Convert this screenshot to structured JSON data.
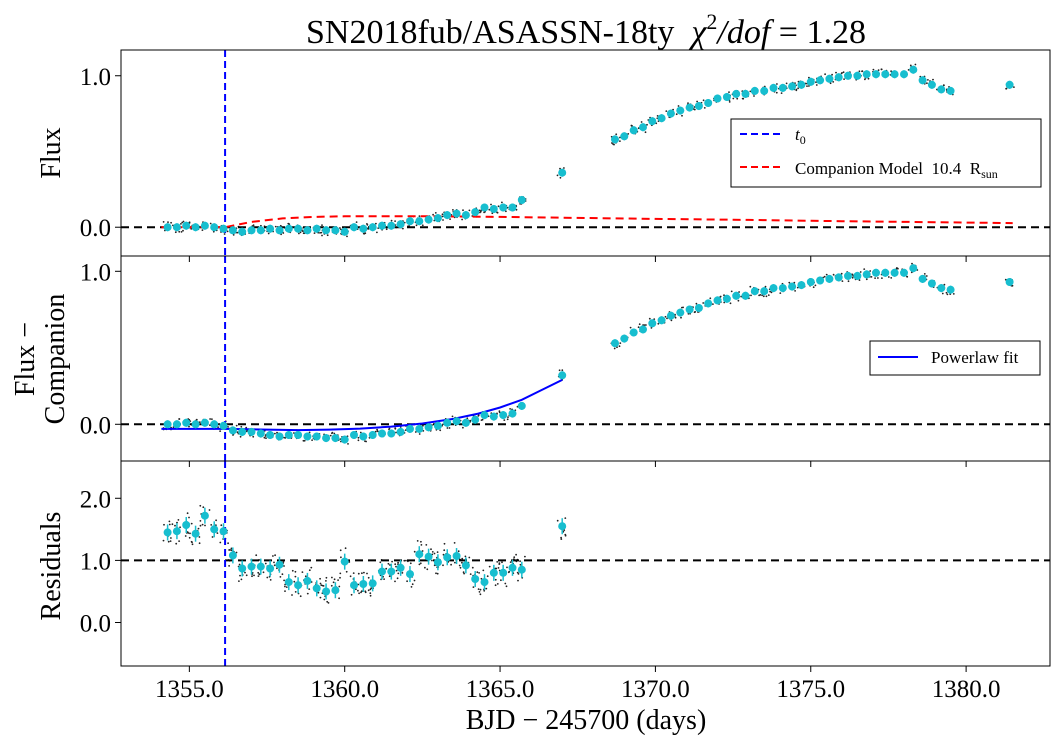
{
  "chart_data": {
    "type": "scatter",
    "title_main": "SN2018fub/ASASSN-18ty",
    "title_stat_symbol": "χ",
    "title_stat_power": "2",
    "title_stat_rest": "/dof",
    "title_stat_value": "= 1.28",
    "xlabel": "BJD − 245700 (days)",
    "xlim": [
      1352.8,
      1382.7
    ],
    "xticks": [
      1355.0,
      1360.0,
      1365.0,
      1370.0,
      1375.0,
      1380.0
    ],
    "xtick_labels": [
      "1355.0",
      "1360.0",
      "1365.0",
      "1370.0",
      "1375.0",
      "1380.0"
    ],
    "t0": 1356.15,
    "colors": {
      "binned": "#17becf",
      "raw": "#222222",
      "t0_line": "#0000ff",
      "companion": "#ff0000",
      "powerlaw": "#0000ff",
      "reference": "#000000"
    },
    "panels": [
      {
        "id": "flux",
        "ylabel": "Flux",
        "ylim": [
          -0.19,
          1.17
        ],
        "yticks": [
          0.0,
          1.0
        ],
        "ytick_labels": [
          "0.0",
          "1.0"
        ],
        "hline": 0.0,
        "legend": {
          "location": "center right",
          "t0_label": "t",
          "t0_sub": "0",
          "companion_label": "Companion Model  10.4  R",
          "companion_sub": "sun"
        },
        "companion_model": {
          "x": [
            1354.1,
            1355.5,
            1356.15,
            1357.0,
            1358.0,
            1359.0,
            1360.0,
            1361.5,
            1363.0,
            1365.0,
            1367.0,
            1370.0,
            1373.0,
            1376.0,
            1379.0,
            1381.5
          ],
          "y": [
            0.0,
            0.0,
            0.0,
            0.035,
            0.058,
            0.068,
            0.072,
            0.073,
            0.072,
            0.068,
            0.063,
            0.055,
            0.048,
            0.04,
            0.033,
            0.027
          ]
        },
        "binned": {
          "x": [
            1354.3,
            1354.6,
            1354.9,
            1355.2,
            1355.5,
            1355.8,
            1356.1,
            1356.4,
            1356.7,
            1357.0,
            1357.3,
            1357.6,
            1357.9,
            1358.2,
            1358.5,
            1358.8,
            1359.1,
            1359.4,
            1359.7,
            1360.0,
            1360.3,
            1360.6,
            1360.9,
            1361.2,
            1361.5,
            1361.8,
            1362.1,
            1362.4,
            1362.7,
            1363.0,
            1363.3,
            1363.6,
            1363.9,
            1364.2,
            1364.5,
            1364.8,
            1365.1,
            1365.4,
            1365.7,
            1367.0,
            1368.7,
            1369.0,
            1369.3,
            1369.6,
            1369.9,
            1370.2,
            1370.5,
            1370.8,
            1371.1,
            1371.4,
            1371.7,
            1372.0,
            1372.3,
            1372.6,
            1372.9,
            1373.2,
            1373.5,
            1373.8,
            1374.1,
            1374.4,
            1374.7,
            1375.0,
            1375.3,
            1375.6,
            1375.9,
            1376.2,
            1376.5,
            1376.8,
            1377.1,
            1377.4,
            1377.7,
            1378.0,
            1378.3,
            1378.6,
            1378.9,
            1379.2,
            1379.5,
            1381.4
          ],
          "y": [
            0.0,
            0.0,
            0.01,
            0.0,
            0.01,
            0.0,
            -0.01,
            -0.02,
            -0.03,
            -0.02,
            -0.02,
            -0.01,
            -0.02,
            -0.01,
            -0.01,
            -0.02,
            -0.01,
            -0.02,
            -0.02,
            -0.03,
            0.0,
            -0.01,
            0.0,
            0.01,
            0.01,
            0.02,
            0.04,
            0.04,
            0.05,
            0.06,
            0.08,
            0.09,
            0.08,
            0.1,
            0.13,
            0.12,
            0.13,
            0.13,
            0.18,
            0.36,
            0.58,
            0.6,
            0.64,
            0.66,
            0.7,
            0.72,
            0.75,
            0.77,
            0.79,
            0.8,
            0.82,
            0.85,
            0.86,
            0.88,
            0.88,
            0.9,
            0.9,
            0.92,
            0.92,
            0.93,
            0.94,
            0.96,
            0.97,
            0.98,
            0.99,
            1.0,
            1.0,
            1.01,
            1.01,
            1.01,
            1.01,
            1.01,
            1.04,
            0.97,
            0.94,
            0.91,
            0.9,
            0.94
          ]
        }
      },
      {
        "id": "flux-minus-companion",
        "ylabel_line1": "Flux −",
        "ylabel_line2": "Companion",
        "ylim": [
          -0.24,
          1.1
        ],
        "yticks": [
          0.0,
          1.0
        ],
        "ytick_labels": [
          "0.0",
          "1.0"
        ],
        "hline": 0.0,
        "legend": {
          "location": "center right",
          "powerlaw_label": "Powerlaw fit"
        },
        "powerlaw_fit": {
          "x": [
            1354.1,
            1355.0,
            1356.15,
            1357.5,
            1358.5,
            1359.5,
            1360.5,
            1361.5,
            1362.5,
            1363.5,
            1364.3,
            1365.0,
            1365.7,
            1366.3,
            1367.0
          ],
          "y": [
            -0.03,
            -0.03,
            -0.03,
            -0.035,
            -0.038,
            -0.035,
            -0.028,
            -0.015,
            0.005,
            0.035,
            0.07,
            0.11,
            0.16,
            0.22,
            0.29
          ]
        },
        "binned": {
          "x": [
            1354.3,
            1354.6,
            1354.9,
            1355.2,
            1355.5,
            1355.8,
            1356.1,
            1356.4,
            1356.7,
            1357.0,
            1357.3,
            1357.6,
            1357.9,
            1358.2,
            1358.5,
            1358.8,
            1359.1,
            1359.4,
            1359.7,
            1360.0,
            1360.3,
            1360.6,
            1360.9,
            1361.2,
            1361.5,
            1361.8,
            1362.1,
            1362.4,
            1362.7,
            1363.0,
            1363.3,
            1363.6,
            1363.9,
            1364.2,
            1364.5,
            1364.8,
            1365.1,
            1365.4,
            1365.7,
            1367.0,
            1368.7,
            1369.0,
            1369.3,
            1369.6,
            1369.9,
            1370.2,
            1370.5,
            1370.8,
            1371.1,
            1371.4,
            1371.7,
            1372.0,
            1372.3,
            1372.6,
            1372.9,
            1373.2,
            1373.5,
            1373.8,
            1374.1,
            1374.4,
            1374.7,
            1375.0,
            1375.3,
            1375.6,
            1375.9,
            1376.2,
            1376.5,
            1376.8,
            1377.1,
            1377.4,
            1377.7,
            1378.0,
            1378.3,
            1378.6,
            1378.9,
            1379.2,
            1379.5,
            1381.4
          ],
          "y": [
            0.0,
            0.0,
            0.01,
            0.0,
            0.01,
            0.0,
            -0.01,
            -0.04,
            -0.05,
            -0.05,
            -0.06,
            -0.07,
            -0.08,
            -0.07,
            -0.07,
            -0.08,
            -0.08,
            -0.09,
            -0.09,
            -0.1,
            -0.07,
            -0.08,
            -0.07,
            -0.06,
            -0.06,
            -0.05,
            -0.03,
            -0.03,
            -0.02,
            -0.01,
            0.01,
            0.02,
            0.01,
            0.03,
            0.06,
            0.05,
            0.06,
            0.07,
            0.12,
            0.32,
            0.53,
            0.56,
            0.6,
            0.62,
            0.66,
            0.68,
            0.71,
            0.73,
            0.75,
            0.76,
            0.79,
            0.81,
            0.82,
            0.84,
            0.84,
            0.87,
            0.87,
            0.89,
            0.89,
            0.9,
            0.91,
            0.93,
            0.94,
            0.95,
            0.96,
            0.97,
            0.97,
            0.98,
            0.99,
            0.99,
            0.99,
            0.99,
            1.02,
            0.95,
            0.92,
            0.89,
            0.88,
            0.93
          ]
        }
      },
      {
        "id": "residuals",
        "ylabel": "Residuals",
        "ylim": [
          -0.7,
          2.6
        ],
        "yticks": [
          0.0,
          1.0,
          2.0
        ],
        "ytick_labels": [
          "0.0",
          "1.0",
          "2.0"
        ],
        "hline": 1.0,
        "binned": {
          "x": [
            1354.3,
            1354.6,
            1354.9,
            1355.2,
            1355.5,
            1355.8,
            1356.1,
            1356.4,
            1356.7,
            1357.0,
            1357.3,
            1357.6,
            1357.9,
            1358.2,
            1358.5,
            1358.8,
            1359.1,
            1359.4,
            1359.7,
            1360.0,
            1360.3,
            1360.6,
            1360.9,
            1361.2,
            1361.5,
            1361.8,
            1362.1,
            1362.4,
            1362.7,
            1363.0,
            1363.3,
            1363.6,
            1363.9,
            1364.2,
            1364.5,
            1364.8,
            1365.1,
            1365.4,
            1365.7,
            1367.0
          ],
          "y": [
            1.45,
            1.47,
            1.57,
            1.43,
            1.72,
            1.5,
            1.47,
            1.08,
            0.87,
            0.9,
            0.9,
            0.87,
            0.93,
            0.65,
            0.6,
            0.67,
            0.55,
            0.5,
            0.52,
            0.98,
            0.6,
            0.62,
            0.63,
            0.82,
            0.82,
            0.88,
            0.78,
            1.1,
            1.06,
            0.97,
            1.05,
            1.07,
            0.92,
            0.7,
            0.65,
            0.8,
            0.8,
            0.88,
            0.85,
            1.55
          ]
        }
      }
    ]
  }
}
